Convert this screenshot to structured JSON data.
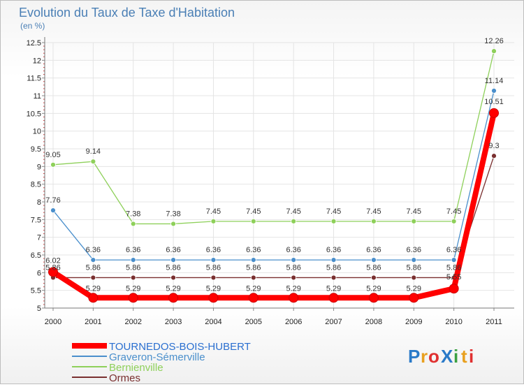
{
  "chart_data": {
    "type": "line",
    "title": "Evolution du Taux de Taxe d'Habitation",
    "subtitle": "(en %)",
    "categories": [
      "2000",
      "2001",
      "2002",
      "2003",
      "2004",
      "2005",
      "2006",
      "2007",
      "2008",
      "2009",
      "2010",
      "2011"
    ],
    "ylim": [
      5,
      12.5
    ],
    "yticks": [
      "5",
      "5.5",
      "6",
      "6.5",
      "7",
      "7.5",
      "8",
      "8.5",
      "9",
      "9.5",
      "10",
      "10.5",
      "11",
      "11.5",
      "12",
      "12.5"
    ],
    "series": [
      {
        "name": "TOURNEDOS-BOIS-HUBERT",
        "color": "#ff0000",
        "values": [
          6.02,
          5.29,
          5.29,
          5.29,
          5.29,
          5.29,
          5.29,
          5.29,
          5.29,
          5.29,
          5.55,
          10.51
        ],
        "labels": [
          "6.02",
          "5.29",
          "5.29",
          "5.29",
          "5.29",
          "5.29",
          "5.29",
          "5.29",
          "5.29",
          "5.29",
          "5.55",
          "10.51"
        ]
      },
      {
        "name": "Graveron-Sémerville",
        "color": "#4a8fcc",
        "values": [
          7.76,
          6.36,
          6.36,
          6.36,
          6.36,
          6.36,
          6.36,
          6.36,
          6.36,
          6.36,
          6.36,
          11.14
        ],
        "labels": [
          "7.76",
          "6.36",
          "6.36",
          "6.36",
          "6.36",
          "6.36",
          "6.36",
          "6.36",
          "6.36",
          "6.36",
          "6.36",
          "11.14"
        ]
      },
      {
        "name": "Bernienville",
        "color": "#8ed05a",
        "values": [
          9.05,
          9.14,
          7.38,
          7.38,
          7.45,
          7.45,
          7.45,
          7.45,
          7.45,
          7.45,
          7.45,
          12.26
        ],
        "labels": [
          "9.05",
          "9.14",
          "7.38",
          "7.38",
          "7.45",
          "7.45",
          "7.45",
          "7.45",
          "7.45",
          "7.45",
          "7.45",
          "12.26"
        ]
      },
      {
        "name": "Ormes",
        "color": "#7a2f2f",
        "values": [
          5.86,
          5.86,
          5.86,
          5.86,
          5.86,
          5.86,
          5.86,
          5.86,
          5.86,
          5.86,
          5.86,
          9.3
        ],
        "labels": [
          "5.86",
          "5.86",
          "5.86",
          "5.86",
          "5.86",
          "5.86",
          "5.86",
          "5.86",
          "5.86",
          "5.86",
          "5.86",
          "9.3"
        ]
      }
    ],
    "legend_position": "bottom-left"
  },
  "logo": {
    "text": "ProXiti",
    "chars": [
      "P",
      "r",
      "o",
      "X",
      "i",
      "t",
      "i"
    ],
    "colors": [
      "#2a7ac8",
      "#e8a020",
      "#e03030",
      "#2a7ac8",
      "#3aa040",
      "#e8a020",
      "#e03030"
    ]
  }
}
